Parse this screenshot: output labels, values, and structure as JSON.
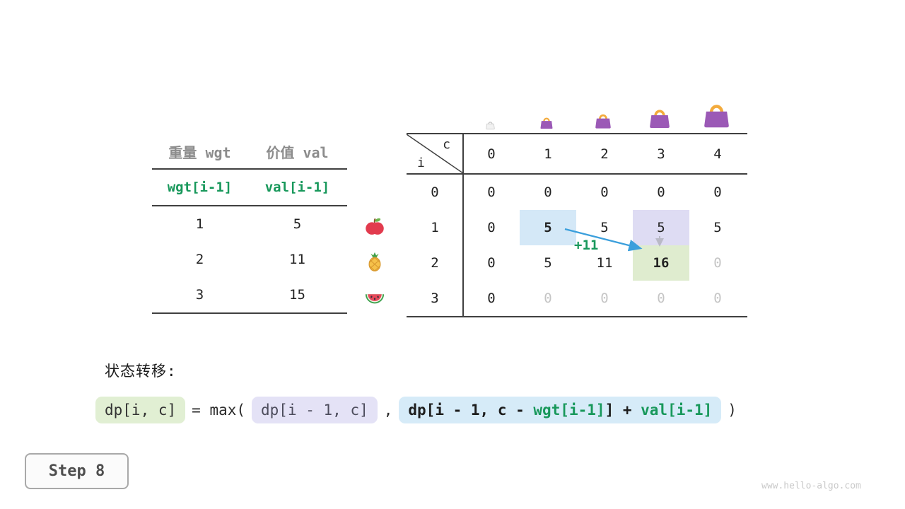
{
  "colors": {
    "accent_green": "#18985b",
    "arrow_blue": "#3b9fdc",
    "gray_arrow": "#b9b9c6",
    "hl_blue": "#d4e8f7",
    "hl_purple": "#dedcf3",
    "hl_green": "#dfeccf",
    "box_green": "#e1efd3",
    "box_purple": "#e4e2f6",
    "box_blue": "#d6ebf8",
    "bag_body": "#9b59b6",
    "bag_handle": "#f3ab3d"
  },
  "items_table": {
    "headers": [
      "重量 wgt",
      "价值 val"
    ],
    "subheader": [
      "wgt[i-1]",
      "val[i-1]"
    ],
    "rows": [
      [
        "1",
        "5"
      ],
      [
        "2",
        "11"
      ],
      [
        "3",
        "15"
      ]
    ]
  },
  "dp_table": {
    "corner": {
      "row_axis": "i",
      "col_axis": "c"
    },
    "col_headers": [
      "0",
      "1",
      "2",
      "3",
      "4"
    ],
    "capacity_icons": [
      "bag-empty",
      "bag-small",
      "bag-medium",
      "bag-large",
      "bag-xlarge"
    ],
    "rows": [
      {
        "label": "0",
        "icon": null,
        "values": [
          "0",
          "0",
          "0",
          "0",
          "0"
        ],
        "styles": [
          "",
          "",
          "",
          "",
          ""
        ]
      },
      {
        "label": "1",
        "icon": "apple",
        "values": [
          "0",
          "5",
          "5",
          "5",
          "5"
        ],
        "styles": [
          "",
          "hl-blue bold",
          "",
          "hl-purple",
          ""
        ]
      },
      {
        "label": "2",
        "icon": "pineapple",
        "values": [
          "0",
          "5",
          "11",
          "16",
          "0"
        ],
        "styles": [
          "",
          "",
          "",
          "hl-green bold",
          "dim"
        ]
      },
      {
        "label": "3",
        "icon": "watermelon",
        "values": [
          "0",
          "0",
          "0",
          "0",
          "0"
        ],
        "styles": [
          "",
          "dim",
          "dim",
          "dim",
          "dim"
        ]
      }
    ],
    "annotation": "+11"
  },
  "transition": {
    "title": "状态转移:",
    "lhs": "dp[i, c]",
    "eq": "= max(",
    "option1": "dp[i - 1, c]",
    "comma": ",",
    "option2_segments": [
      {
        "text": "dp[i - 1, c - ",
        "green": false
      },
      {
        "text": "wgt[i-1]",
        "green": true
      },
      {
        "text": "] + ",
        "green": false
      },
      {
        "text": "val[i-1]",
        "green": true
      }
    ],
    "close": ")"
  },
  "step": {
    "label": "Step 8"
  },
  "watermark": "www.hello-algo.com"
}
